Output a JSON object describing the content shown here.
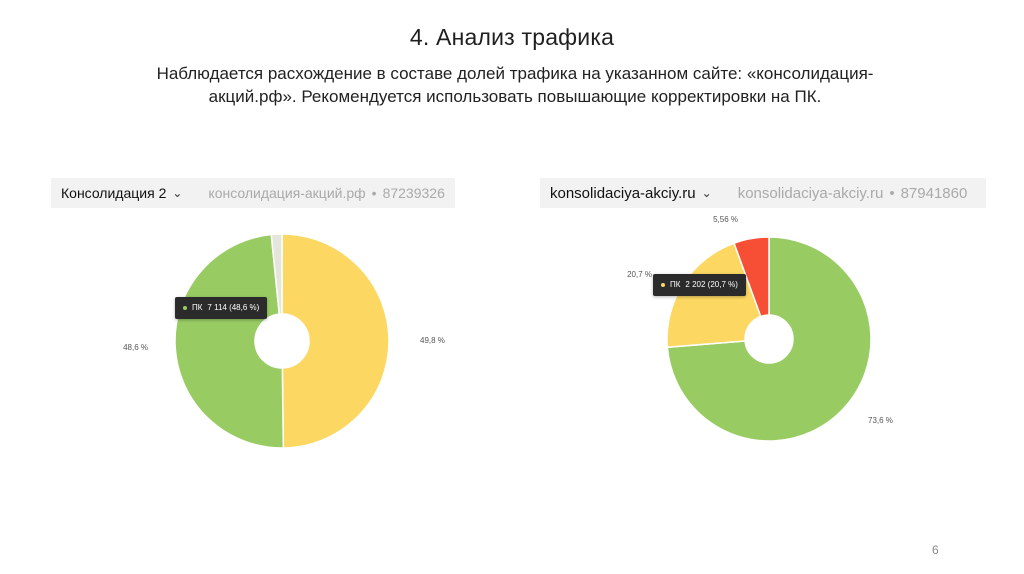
{
  "title": "4. Анализ трафика",
  "subtitle": "Наблюдается расхождение в составе долей трафика на указанном сайте: «консолидация-акций.рф». Рекомендуется использовать повышающие корректировки на ПК.",
  "page_number": "6",
  "colors": {
    "green": "#98cc63",
    "yellow": "#fcd862",
    "red": "#f64f35",
    "light": "#e5e5dc"
  },
  "chart_data": [
    {
      "type": "pie",
      "header": {
        "name": "Консолидация 2",
        "site": "консолидация-акций.рф",
        "id": "87239326"
      },
      "tooltip": {
        "label": "ПК",
        "value": "7 114 (48,6 %)"
      },
      "slices": [
        {
          "value": 49.8,
          "label": "49,8 %",
          "color": "#fcd862"
        },
        {
          "value": 48.6,
          "label": "48,6 %",
          "color": "#98cc63"
        },
        {
          "value": 1.6,
          "label": "",
          "color": "#e5e5dc"
        }
      ]
    },
    {
      "type": "pie",
      "header": {
        "name": "konsolidaciya-akciy.ru",
        "site": "konsolidaciya-akciy.ru",
        "id": "87941860"
      },
      "tooltip": {
        "label": "ПК",
        "value": "2 202 (20,7 %)"
      },
      "slices": [
        {
          "value": 73.6,
          "label": "73,6 %",
          "color": "#98cc63"
        },
        {
          "value": 20.7,
          "label": "20,7 %",
          "color": "#fcd862"
        },
        {
          "value": 5.56,
          "label": "5,56 %",
          "color": "#f64f35"
        }
      ]
    }
  ]
}
